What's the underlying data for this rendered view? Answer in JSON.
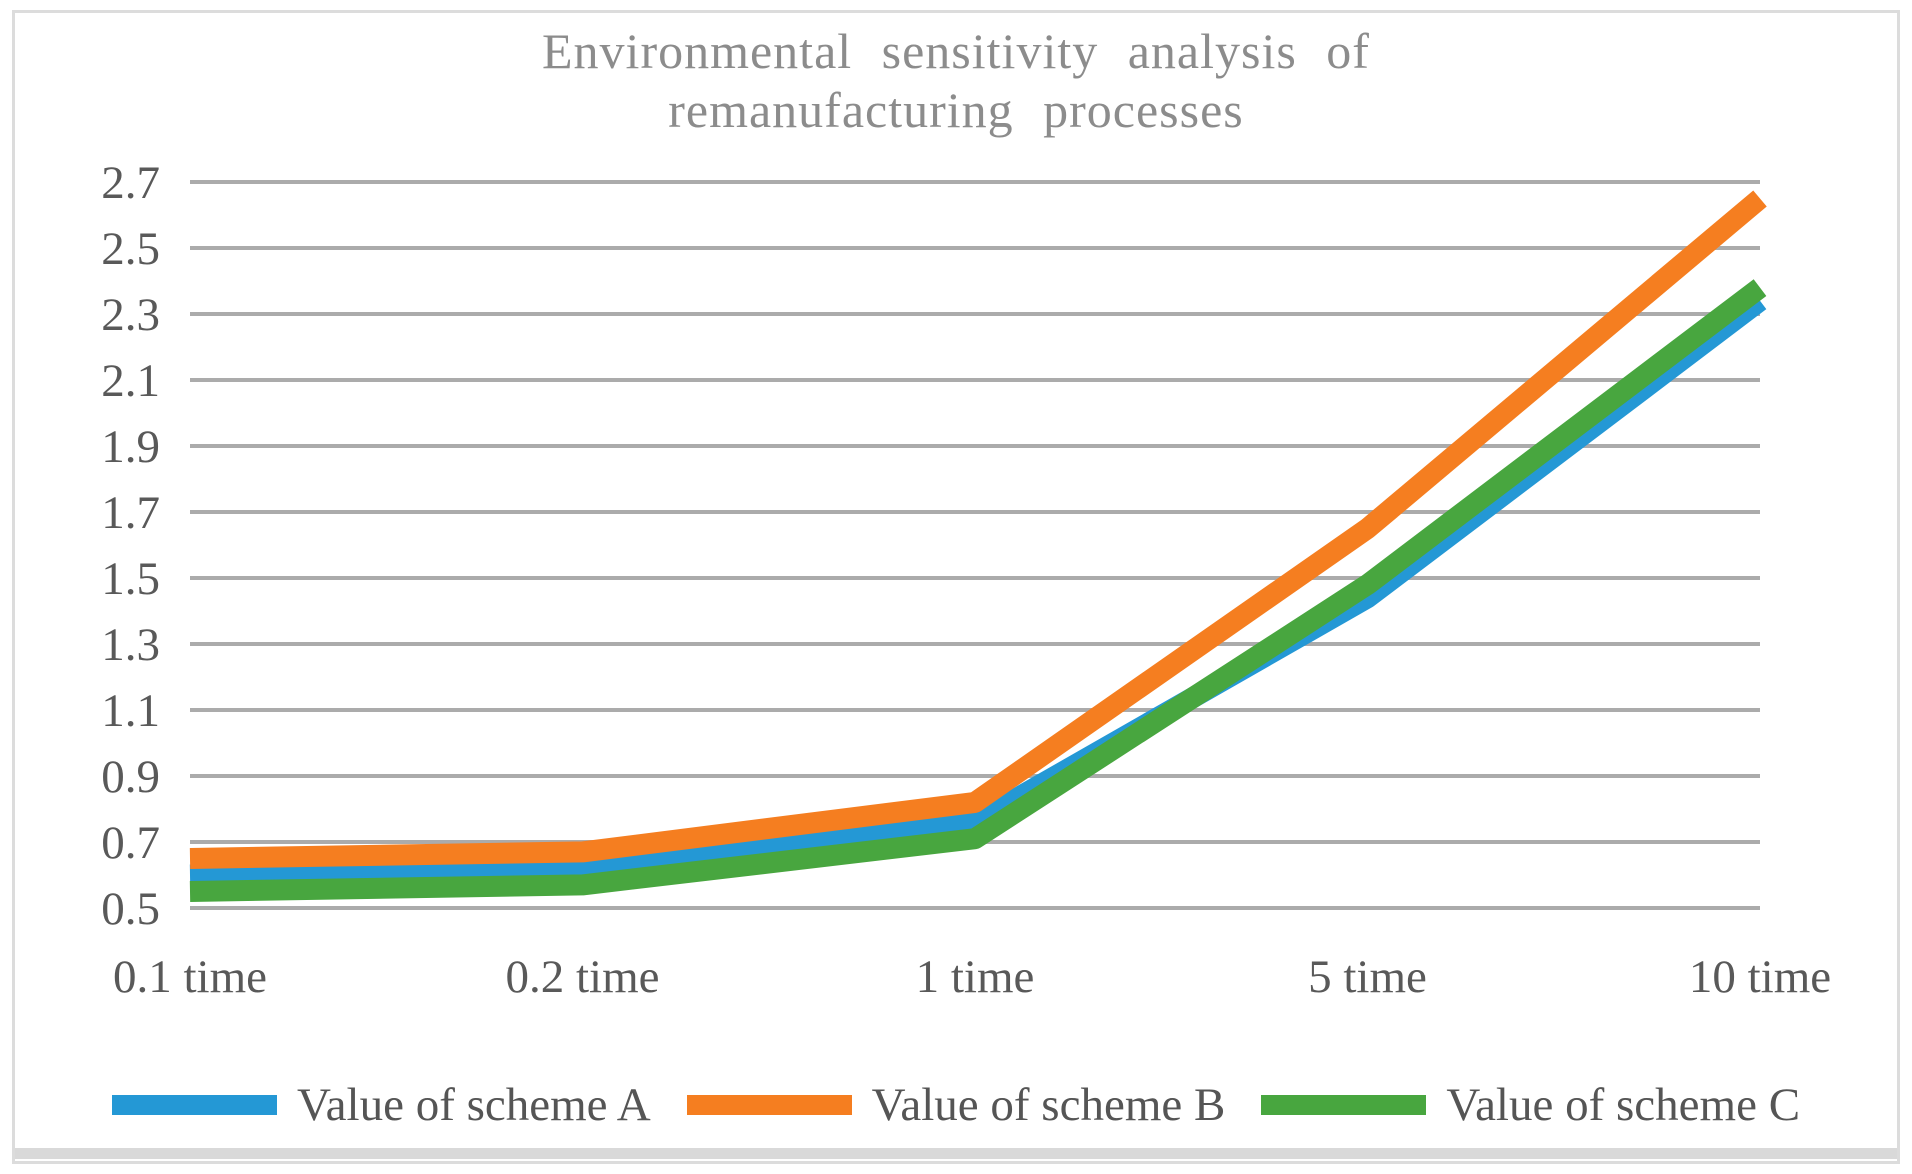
{
  "page": {
    "background": "#ffffff",
    "frame_border_color": "#dcdcdc",
    "bottom_bar_color": "#d9d9d9"
  },
  "chart_data": {
    "type": "line",
    "title": "Environmental sensitivity analysis of remanufacturing processes",
    "categories": [
      "0.1 time",
      "0.2 time",
      "1 time",
      "5 time",
      "10 time"
    ],
    "series": [
      {
        "name": "Value of scheme A",
        "color": "#2498d5",
        "values": [
          0.6,
          0.62,
          0.76,
          1.44,
          2.34
        ]
      },
      {
        "name": "Value of scheme B",
        "color": "#f57e20",
        "values": [
          0.65,
          0.67,
          0.82,
          1.65,
          2.65
        ]
      },
      {
        "name": "Value of scheme C",
        "color": "#48a63f",
        "values": [
          0.55,
          0.57,
          0.71,
          1.48,
          2.38
        ]
      }
    ],
    "y_axis": {
      "min": 0.5,
      "max": 2.7,
      "step": 0.2,
      "tick_labels": [
        "0.5",
        "0.7",
        "0.9",
        "1.1",
        "1.3",
        "1.5",
        "1.7",
        "1.9",
        "2.1",
        "2.3",
        "2.5",
        "2.7"
      ]
    },
    "x_axis_label_suffix": "time",
    "grid": "horizontal",
    "gridline_color": "#ababab",
    "axis_label_color": "#595959",
    "title_color": "#8c8c8c",
    "legend_position": "bottom",
    "line_width": 21
  }
}
